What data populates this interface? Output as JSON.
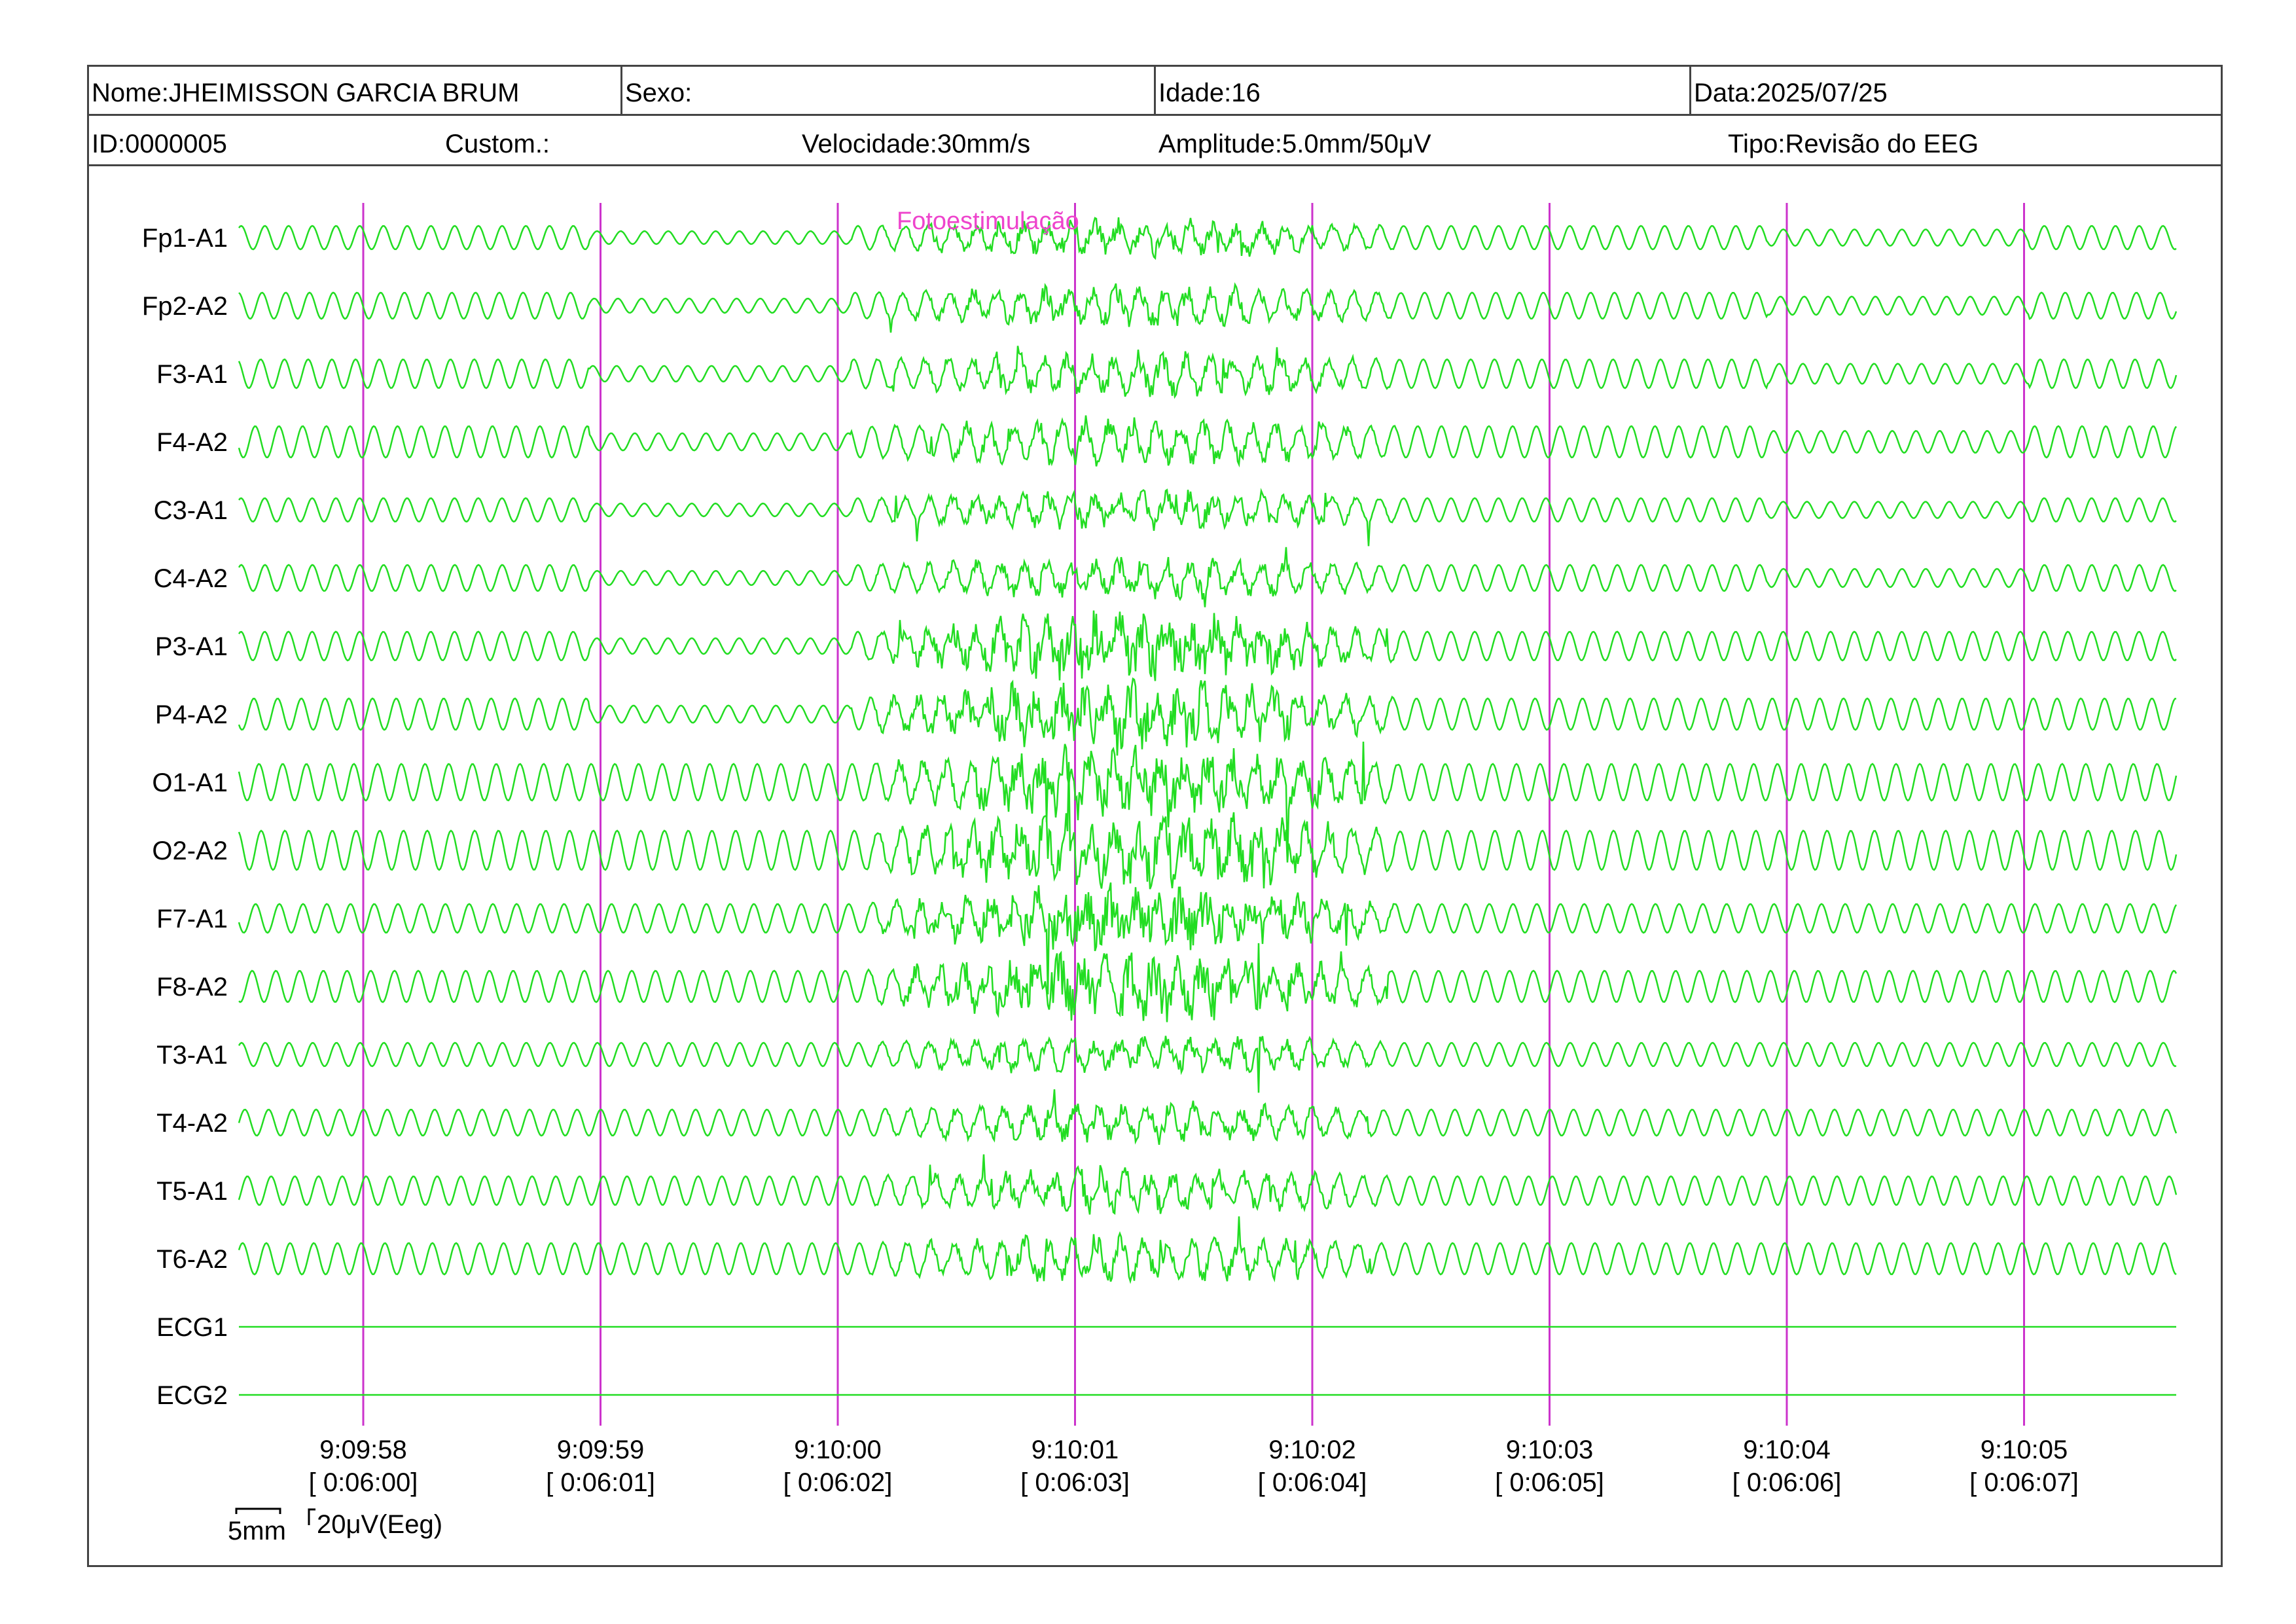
{
  "header": {
    "nome": "Nome:JHEIMISSON GARCIA BRUM",
    "sexo": "Sexo:",
    "idade": "Idade:16",
    "data": "Data:2025/07/25",
    "id": "ID:0000005",
    "custom": "Custom.:",
    "velocidade": "Velocidade:30mm/s",
    "amplitude": "Amplitude:5.0mm/50μV",
    "tipo": "Tipo:Revisão do EEG"
  },
  "colors": {
    "trace": "#22dd22",
    "marker": "#cc33cc",
    "event": "#ee44cc"
  },
  "event_label": "Fotoestimulação",
  "scale": {
    "time_label": "5mm",
    "amp_label": "20μV(Eeg)"
  },
  "chart_data": {
    "type": "line",
    "channels": [
      "Fp1-A1",
      "Fp2-A2",
      "F3-A1",
      "F4-A2",
      "C3-A1",
      "C4-A2",
      "P3-A1",
      "P4-A2",
      "O1-A1",
      "O2-A2",
      "F7-A1",
      "F8-A2",
      "T3-A1",
      "T4-A2",
      "T5-A1",
      "T6-A2",
      "ECG1",
      "ECG2"
    ],
    "time_markers": [
      {
        "clock": "9:09:58",
        "elapsed": "[ 0:06:00]"
      },
      {
        "clock": "9:09:59",
        "elapsed": "[ 0:06:01]"
      },
      {
        "clock": "9:10:00",
        "elapsed": "[ 0:06:02]"
      },
      {
        "clock": "9:10:01",
        "elapsed": "[ 0:06:03]"
      },
      {
        "clock": "9:10:02",
        "elapsed": "[ 0:06:04]"
      },
      {
        "clock": "9:10:03",
        "elapsed": "[ 0:06:05]"
      },
      {
        "clock": "9:10:04",
        "elapsed": "[ 0:06:06]"
      },
      {
        "clock": "9:10:05",
        "elapsed": "[ 0:06:07]"
      }
    ],
    "event": {
      "label": "Fotoestimulação",
      "start_seconds": 2.25
    },
    "seconds_shown": 8.2,
    "approx_frequency_hz": 10,
    "ecg_flat": true
  }
}
